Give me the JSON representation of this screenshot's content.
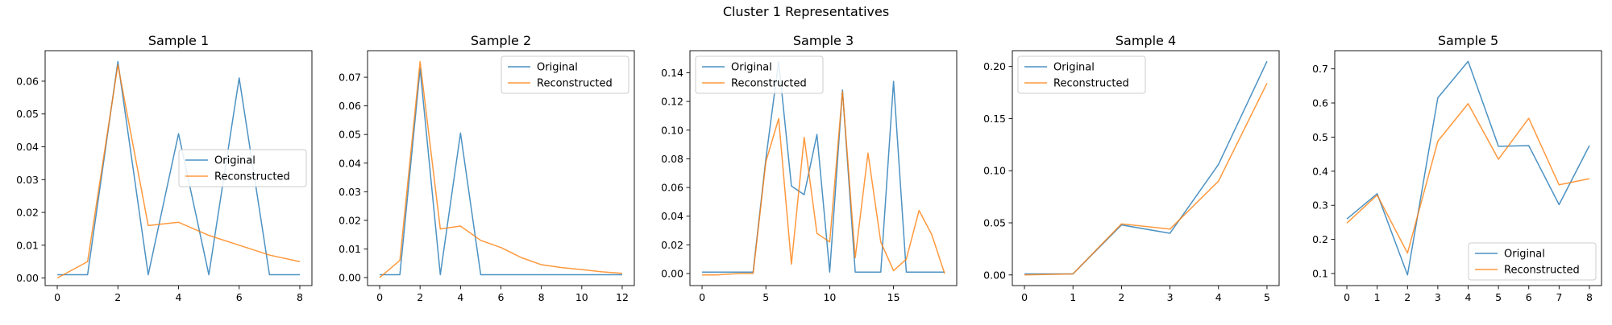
{
  "figure": {
    "title": "Cluster 1 Representatives"
  },
  "legend_labels": {
    "original": "Original",
    "reconstructed": "Reconstructed"
  },
  "colors": {
    "original": "#1f77b4",
    "reconstructed": "#ff7f0e"
  },
  "chart_data": [
    {
      "type": "line",
      "title": "Sample 1",
      "x": [
        0,
        1,
        2,
        3,
        4,
        5,
        6,
        7,
        8
      ],
      "series": [
        {
          "name": "Original",
          "values": [
            0.001,
            0.001,
            0.066,
            0.001,
            0.044,
            0.001,
            0.061,
            0.001,
            0.001
          ]
        },
        {
          "name": "Reconstructed",
          "values": [
            0.0,
            0.005,
            0.065,
            0.016,
            0.017,
            0.013,
            0.01,
            0.007,
            0.005
          ]
        }
      ],
      "xlim": [
        -0.4,
        8.4
      ],
      "ylim": [
        -0.0023,
        0.0693
      ],
      "xticks": [
        0,
        2,
        4,
        6,
        8
      ],
      "yticks": [
        0.0,
        0.01,
        0.02,
        0.03,
        0.04,
        0.05,
        0.06
      ],
      "ytick_labels": [
        "0.00",
        "0.01",
        "0.02",
        "0.03",
        "0.04",
        "0.05",
        "0.06"
      ],
      "legend": "center-right"
    },
    {
      "type": "line",
      "title": "Sample 2",
      "x": [
        0,
        1,
        2,
        3,
        4,
        5,
        6,
        7,
        8,
        9,
        10,
        11,
        12
      ],
      "series": [
        {
          "name": "Original",
          "values": [
            0.001,
            0.001,
            0.073,
            0.001,
            0.0505,
            0.001,
            0.001,
            0.001,
            0.001,
            0.001,
            0.001,
            0.001,
            0.001
          ]
        },
        {
          "name": "Reconstructed",
          "values": [
            0.0,
            0.006,
            0.0755,
            0.017,
            0.018,
            0.013,
            0.0105,
            0.007,
            0.0045,
            0.0035,
            0.0028,
            0.002,
            0.0015
          ]
        }
      ],
      "xlim": [
        -0.6,
        12.6
      ],
      "ylim": [
        -0.0028,
        0.0793
      ],
      "xticks": [
        0,
        2,
        4,
        6,
        8,
        10,
        12
      ],
      "yticks": [
        0.0,
        0.01,
        0.02,
        0.03,
        0.04,
        0.05,
        0.06,
        0.07
      ],
      "ytick_labels": [
        "0.00",
        "0.01",
        "0.02",
        "0.03",
        "0.04",
        "0.05",
        "0.06",
        "0.07"
      ],
      "legend": "upper-right"
    },
    {
      "type": "line",
      "title": "Sample 3",
      "x": [
        0,
        1,
        2,
        3,
        4,
        5,
        6,
        7,
        8,
        9,
        10,
        11,
        12,
        13,
        14,
        15,
        16,
        17,
        18,
        19
      ],
      "series": [
        {
          "name": "Original",
          "values": [
            0.001,
            0.001,
            0.001,
            0.001,
            0.001,
            0.08,
            0.148,
            0.061,
            0.055,
            0.097,
            0.001,
            0.128,
            0.001,
            0.001,
            0.001,
            0.134,
            0.001,
            0.001,
            0.001,
            0.001
          ]
        },
        {
          "name": "Reconstructed",
          "values": [
            -0.001,
            -0.001,
            -0.0005,
            0.0,
            0.0,
            0.078,
            0.108,
            0.0065,
            0.095,
            0.028,
            0.022,
            0.127,
            0.011,
            0.084,
            0.022,
            0.002,
            0.01,
            0.044,
            0.027,
            0.0
          ]
        }
      ],
      "xlim": [
        -0.95,
        19.95
      ],
      "ylim": [
        -0.0084,
        0.1554
      ],
      "xticks": [
        0,
        5,
        10,
        15
      ],
      "yticks": [
        0.0,
        0.02,
        0.04,
        0.06,
        0.08,
        0.1,
        0.12,
        0.14
      ],
      "ytick_labels": [
        "0.00",
        "0.02",
        "0.04",
        "0.06",
        "0.08",
        "0.10",
        "0.12",
        "0.14"
      ],
      "legend": "upper-left"
    },
    {
      "type": "line",
      "title": "Sample 4",
      "x": [
        0,
        1,
        2,
        3,
        4,
        5
      ],
      "series": [
        {
          "name": "Original",
          "values": [
            0.001,
            0.001,
            0.048,
            0.04,
            0.106,
            0.205
          ]
        },
        {
          "name": "Reconstructed",
          "values": [
            0.0,
            0.001,
            0.049,
            0.044,
            0.09,
            0.184
          ]
        }
      ],
      "xlim": [
        -0.25,
        5.25
      ],
      "ylim": [
        -0.0102,
        0.2152
      ],
      "xticks": [
        0,
        1,
        2,
        3,
        4,
        5
      ],
      "yticks": [
        0.0,
        0.05,
        0.1,
        0.15,
        0.2
      ],
      "ytick_labels": [
        "0.00",
        "0.05",
        "0.10",
        "0.15",
        "0.20"
      ],
      "legend": "upper-left"
    },
    {
      "type": "line",
      "title": "Sample 5",
      "x": [
        0,
        1,
        2,
        3,
        4,
        5,
        6,
        7,
        8
      ],
      "series": [
        {
          "name": "Original",
          "values": [
            0.26,
            0.334,
            0.096,
            0.615,
            0.722,
            0.473,
            0.475,
            0.302,
            0.475
          ]
        },
        {
          "name": "Reconstructed",
          "values": [
            0.248,
            0.33,
            0.16,
            0.488,
            0.598,
            0.435,
            0.555,
            0.36,
            0.378
          ]
        }
      ],
      "xlim": [
        -0.4,
        8.4
      ],
      "ylim": [
        0.0647,
        0.7533
      ],
      "xticks": [
        0,
        1,
        2,
        3,
        4,
        5,
        6,
        7,
        8
      ],
      "yticks": [
        0.1,
        0.2,
        0.3,
        0.4,
        0.5,
        0.6,
        0.7
      ],
      "ytick_labels": [
        "0.1",
        "0.2",
        "0.3",
        "0.4",
        "0.5",
        "0.6",
        "0.7"
      ],
      "legend": "lower-right"
    }
  ]
}
